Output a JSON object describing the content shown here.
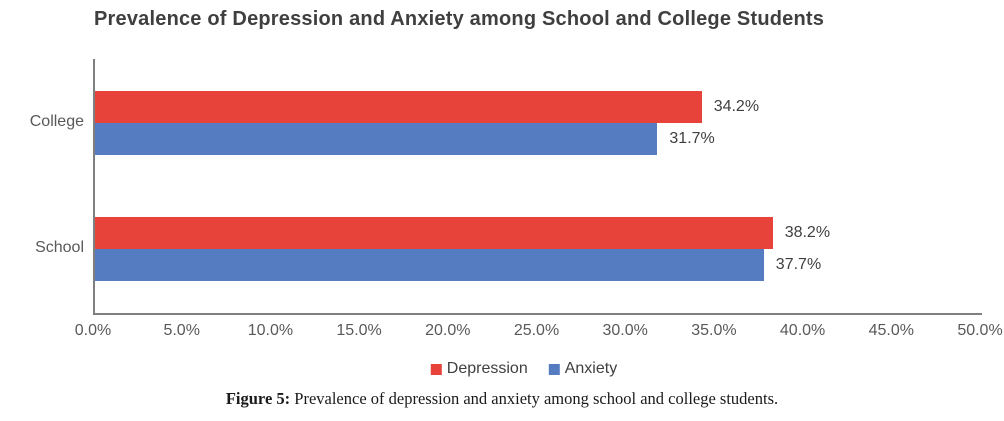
{
  "chart_data": {
    "type": "bar",
    "orientation": "horizontal",
    "title": "Prevalence of Depression and Anxiety among School and College Students",
    "categories": [
      "College",
      "School"
    ],
    "series": [
      {
        "name": "Depression",
        "color": "#e8433a",
        "values": [
          34.2,
          38.2
        ]
      },
      {
        "name": "Anxiety",
        "color": "#557bc1",
        "values": [
          31.7,
          37.7
        ]
      }
    ],
    "value_labels": {
      "Depression": [
        "34.2%",
        "38.2%"
      ],
      "Anxiety": [
        "31.7%",
        "37.7%"
      ]
    },
    "xlim": [
      0,
      50
    ],
    "x_ticks": [
      "0.0%",
      "5.0%",
      "10.0%",
      "15.0%",
      "20.0%",
      "25.0%",
      "30.0%",
      "35.0%",
      "40.0%",
      "45.0%",
      "50.0%"
    ],
    "grid": false,
    "legend_position": "bottom",
    "legend": [
      "Depression",
      "Anxiety"
    ]
  },
  "colors": {
    "depression": "#e8433a",
    "anxiety": "#557bc1",
    "axis_line": "#7f7f7f",
    "title_text": "#3f3f3f",
    "tick_text": "#595959",
    "value_text": "#3f3f3f"
  },
  "caption": {
    "prefix": "Figure 5:",
    "text": " Prevalence of depression and anxiety among school and college students."
  }
}
